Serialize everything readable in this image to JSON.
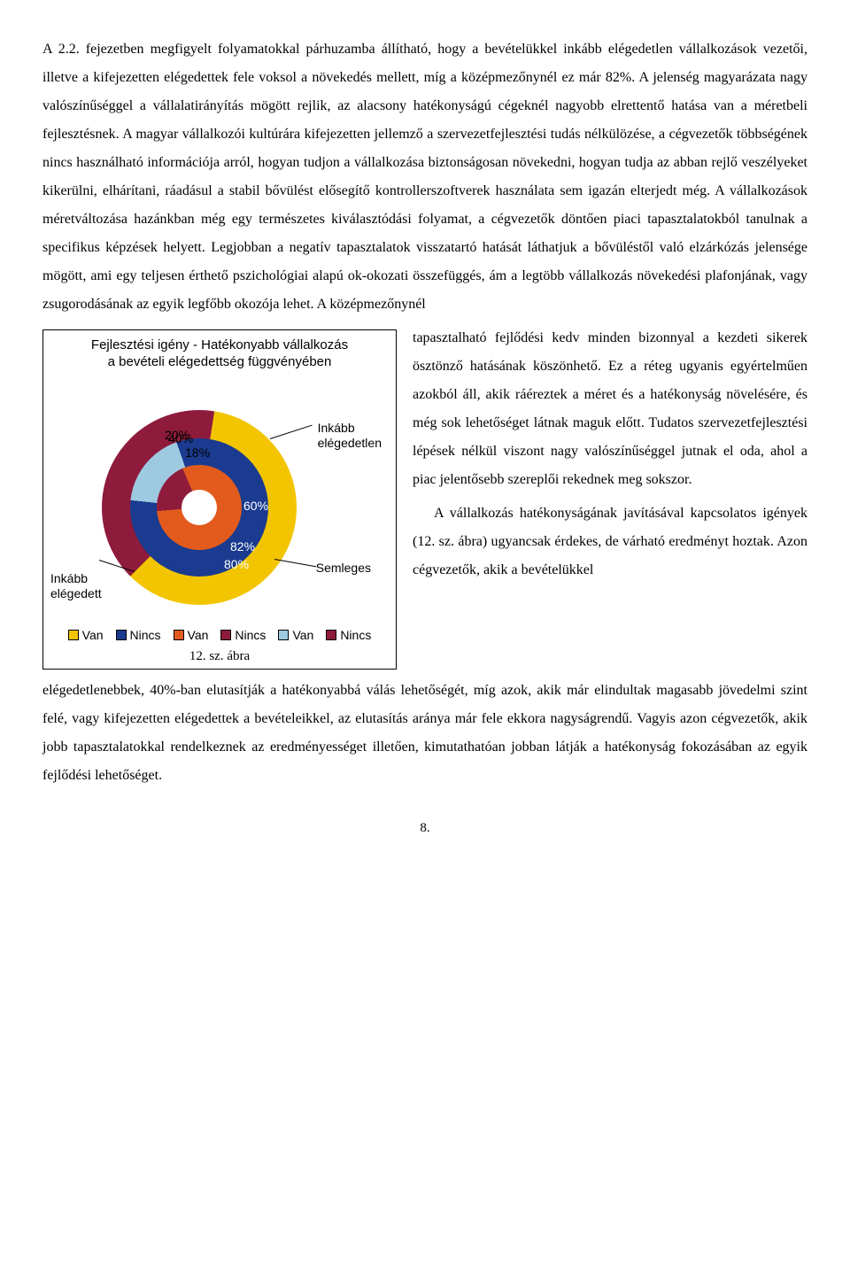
{
  "para1": "A 2.2. fejezetben megfigyelt folyamatokkal párhuzamba állítható, hogy a bevételükkel inkább elégedetlen vállalkozások vezetői, illetve a kifejezetten elégedettek fele voksol a növekedés mellett, míg a középmezőnynél ez már 82%. A jelenség magyarázata nagy valószínűséggel a vállalatirányítás mögött rejlik, az alacsony hatékonyságú cégeknél nagyobb elrettentő hatása van a méretbeli fejlesztésnek. A magyar vállalkozói kultúrára kifejezetten jellemző a szervezetfejlesztési tudás nélkülözése, a cégvezetők többségének nincs használható információja arról, hogyan tudjon a vállalkozása biztonságosan növekedni, hogyan tudja az abban rejlő veszélyeket kikerülni, elhárítani, ráadásul a stabil bővülést elősegítő kontrollerszoftverek használata sem igazán elterjedt még. A vállalkozások méretváltozása hazánkban még egy természetes kiválasztódási folyamat, a cégvezetők döntően piaci tapasztalatokból tanulnak a specifikus képzések helyett. Legjobban a negatív tapasztalatok visszatartó hatását láthatjuk a bővüléstől való elzárkózás jelensége mögött, ami egy teljesen érthető pszichológiai alapú ok-okozati összefüggés, ám a legtöbb vállalkozás növekedési plafonjának, vagy zsugorodásának az egyik legfőbb okozója lehet. A középmezőnynél",
  "para2": "tapasztalható fejlődési kedv minden bizonnyal a kezdeti sikerek ösztönző hatásának köszönhető. Ez a réteg ugyanis egyértelműen azokból áll, akik ráéreztek a méret és a hatékonyság növelésére, és még sok lehetőséget látnak maguk előtt. Tudatos szervezetfejlesztési lépések nélkül viszont nagy valószínűséggel jutnak el oda, ahol a piac jelentősebb szereplői rekednek meg sokszor.",
  "para3": "A vállalkozás hatékonyságának javításával kapcsolatos igények (12. sz. ábra) ugyancsak érdekes, de várható eredményt hoztak. Azon cégvezetők, akik a bevételükkel",
  "para4": "elégedetlenebbek, 40%-ban elutasítják a hatékonyabbá válás lehetőségét, míg azok, akik már elindultak magasabb jövedelmi szint felé, vagy kifejezetten elégedettek a bevételeikkel, az elutasítás aránya már fele ekkora nagyságrendű. Vagyis azon cégvezetők, akik jobb tapasztalatokkal rendelkeznek az eredményességet illetően, kimutathatóan jobban látják a hatékonyság fokozásában az egyik fejlődési lehetőséget.",
  "pageNumber": "8.",
  "chart": {
    "type": "nested-pie",
    "title_line1": "Fejlesztési igény - Hatékonyabb vállalkozás",
    "title_line2": "a bevételi elégedettség függvényében",
    "caption": "12. sz. ábra",
    "label_outer": "Inkább\nelégedetlen",
    "label_middle": "Semleges",
    "label_inner": "Inkább\nelégedett",
    "percent_labels": {
      "outer_nincs": "40%",
      "outer_van": "60%",
      "mid_nincs": "18%",
      "mid_van": "82%",
      "inner_nincs": "20%",
      "inner_van": "80%"
    },
    "rings": {
      "outer": {
        "van_pct": 60,
        "nincs_pct": 40,
        "start_deg": -135,
        "color_van": "#f2c500",
        "color_nincs": "#8f1b3c"
      },
      "middle": {
        "van_pct": 82,
        "nincs_pct": 18,
        "start_deg": -84,
        "color_van": "#1a3b8f",
        "color_nincs": "#9ecae1"
      },
      "inner": {
        "van_pct": 80,
        "nincs_pct": 20,
        "start_deg": -95,
        "color_van": "#e25b1d",
        "color_nincs": "#8f1b3c"
      },
      "hole_color": "#ffffff",
      "outer_diameter": 220,
      "middle_diameter": 156,
      "inner_diameter": 96,
      "hole_diameter": 40
    },
    "legend": [
      {
        "label": "Van",
        "color": "#f2c500"
      },
      {
        "label": "Nincs",
        "color": "#1a3b8f"
      },
      {
        "label": "Van",
        "color": "#e25b1d"
      },
      {
        "label": "Nincs",
        "color": "#8f1b3c"
      },
      {
        "label": "Van",
        "color": "#9ecae1"
      },
      {
        "label": "Nincs",
        "color": "#8f1b3c"
      }
    ],
    "background_color": "#ffffff",
    "border_color": "#000000",
    "font_family": "Arial",
    "title_fontsize": 15,
    "label_fontsize": 14
  }
}
